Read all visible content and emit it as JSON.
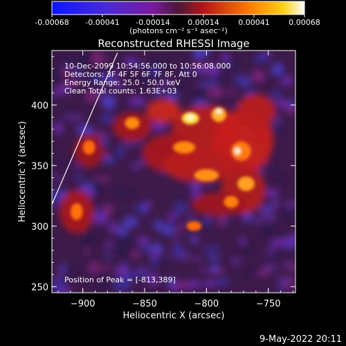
{
  "colorbar": {
    "ticks": [
      "-0.00068",
      "-0.00041",
      "-0.00014",
      "0.00014",
      "0.00041",
      "0.00068"
    ],
    "unit_label": "(photons cm⁻² s⁻¹ asec⁻²)"
  },
  "chart_data": {
    "type": "heatmap",
    "title": "Reconstructed RHESSI Image",
    "xlabel": "Heliocentric X (arcsec)",
    "ylabel": "Heliocentric Y (arcsec)",
    "xlim": [
      -925,
      -728
    ],
    "ylim": [
      245,
      445
    ],
    "x_ticks": [
      "-900",
      "-850",
      "-800",
      "-750"
    ],
    "y_ticks": [
      "250",
      "300",
      "350",
      "400"
    ],
    "value_range": [
      -0.00068,
      0.00068
    ],
    "annotations": [
      "10-Dec-2099 10:54:56.000 to 10:56:08.000",
      "Detectors: 3F 4F 5F 6F 7F 8F, Att 0",
      "Energy Range: 25.0 - 50.0 keV",
      "Clean     Total counts: 1.63E+03"
    ],
    "peak_label": "Position of Peak = [-813,389]",
    "limb_line": [
      [
        -925,
        318
      ],
      [
        -872,
        443
      ]
    ]
  },
  "footer": {
    "timestamp": "9-May-2022 20:11"
  }
}
